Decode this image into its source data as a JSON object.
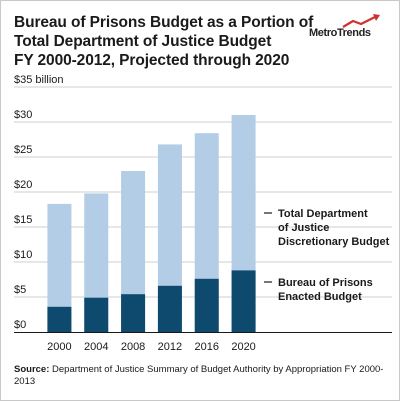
{
  "header": {
    "title_lines": [
      "Bureau of Prisons Budget as a Portion of",
      "Total Department of Justice Budget",
      "FY 2000-2012, Projected through 2020"
    ],
    "logo": {
      "text_main": "MetroTrends",
      "icon": "trend-arrow-icon",
      "accent_color": "#d0312d"
    }
  },
  "chart_data": {
    "type": "bar",
    "stacked": false,
    "overlapping": true,
    "categories": [
      "2000",
      "2004",
      "2008",
      "2012",
      "2016",
      "2020"
    ],
    "series": [
      {
        "name": "Total Department of Justice Discretionary Budget",
        "label_lines": [
          "Total Department",
          "of Justice",
          "Discretionary Budget"
        ],
        "color": "#b3cde6",
        "values": [
          18.3,
          19.8,
          23.0,
          26.8,
          28.4,
          31.0
        ]
      },
      {
        "name": "Bureau of Prisons Enacted Budget",
        "label_lines": [
          "Bureau of Prisons",
          "Enacted Budget"
        ],
        "color": "#0d4a6e",
        "values": [
          3.6,
          4.9,
          5.4,
          6.6,
          7.6,
          8.8
        ]
      }
    ],
    "ylim": [
      0,
      35
    ],
    "yticks": [
      0,
      5,
      10,
      15,
      20,
      25,
      30,
      35
    ],
    "ytick_labels": [
      "$0",
      "$5",
      "$10",
      "$15",
      "$20",
      "$25",
      "$30",
      "$35 billion"
    ],
    "grid": true,
    "legend": "right"
  },
  "footer": {
    "source_label": "Source:",
    "source_text": " Department of Justice Summary of Budget Authority by Appropriation FY 2000-2013"
  }
}
